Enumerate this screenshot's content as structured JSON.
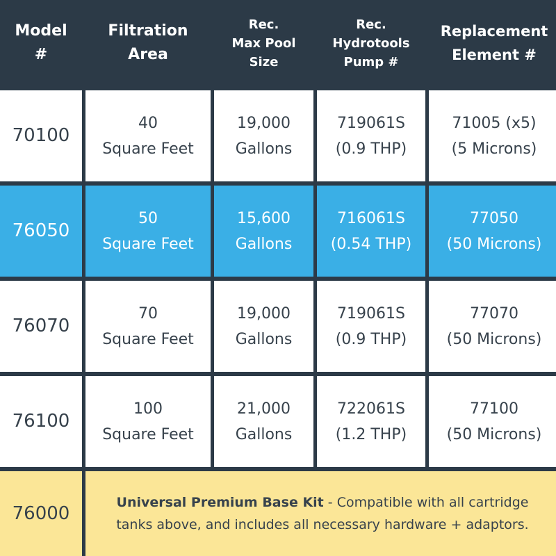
{
  "headers": [
    [
      "Model",
      "#"
    ],
    [
      "Filtration",
      "Area"
    ],
    [
      "Rec.",
      "Max Pool",
      "Size"
    ],
    [
      "Rec.",
      "Hydrotools",
      "Pump #"
    ],
    [
      "Replacement",
      "Element #"
    ]
  ],
  "rows": [
    {
      "model": "70100",
      "area": [
        "40",
        "Square Feet"
      ],
      "pool": [
        "19,000",
        "Gallons"
      ],
      "pump": [
        "719061S",
        "(0.9 THP)"
      ],
      "element": [
        "71005 (x5)",
        "(5 Microns)"
      ]
    },
    {
      "model": "76050",
      "area": [
        "50",
        "Square Feet"
      ],
      "pool": [
        "15,600",
        "Gallons"
      ],
      "pump": [
        "716061S",
        "(0.54 THP)"
      ],
      "element": [
        "77050",
        "(50 Microns)"
      ]
    },
    {
      "model": "76070",
      "area": [
        "70",
        "Square Feet"
      ],
      "pool": [
        "19,000",
        "Gallons"
      ],
      "pump": [
        "719061S",
        "(0.9 THP)"
      ],
      "element": [
        "77070",
        "(50 Microns)"
      ]
    },
    {
      "model": "76100",
      "area": [
        "100",
        "Square Feet"
      ],
      "pool": [
        "21,000",
        "Gallons"
      ],
      "pump": [
        "722061S",
        "(1.2 THP)"
      ],
      "element": [
        "77100",
        "(50 Microns)"
      ]
    }
  ],
  "kit": {
    "model": "76000",
    "name": "Universal Premium Base Kit",
    "description": " - Compatible with all cartridge tanks above, and includes all necessary hardware + adaptors."
  },
  "highlight_row_index": 1,
  "colors": {
    "header_bg": "#2c3a47",
    "highlight": "#3aafe6",
    "kit_bg": "#fbe697",
    "text": "#37424c"
  }
}
